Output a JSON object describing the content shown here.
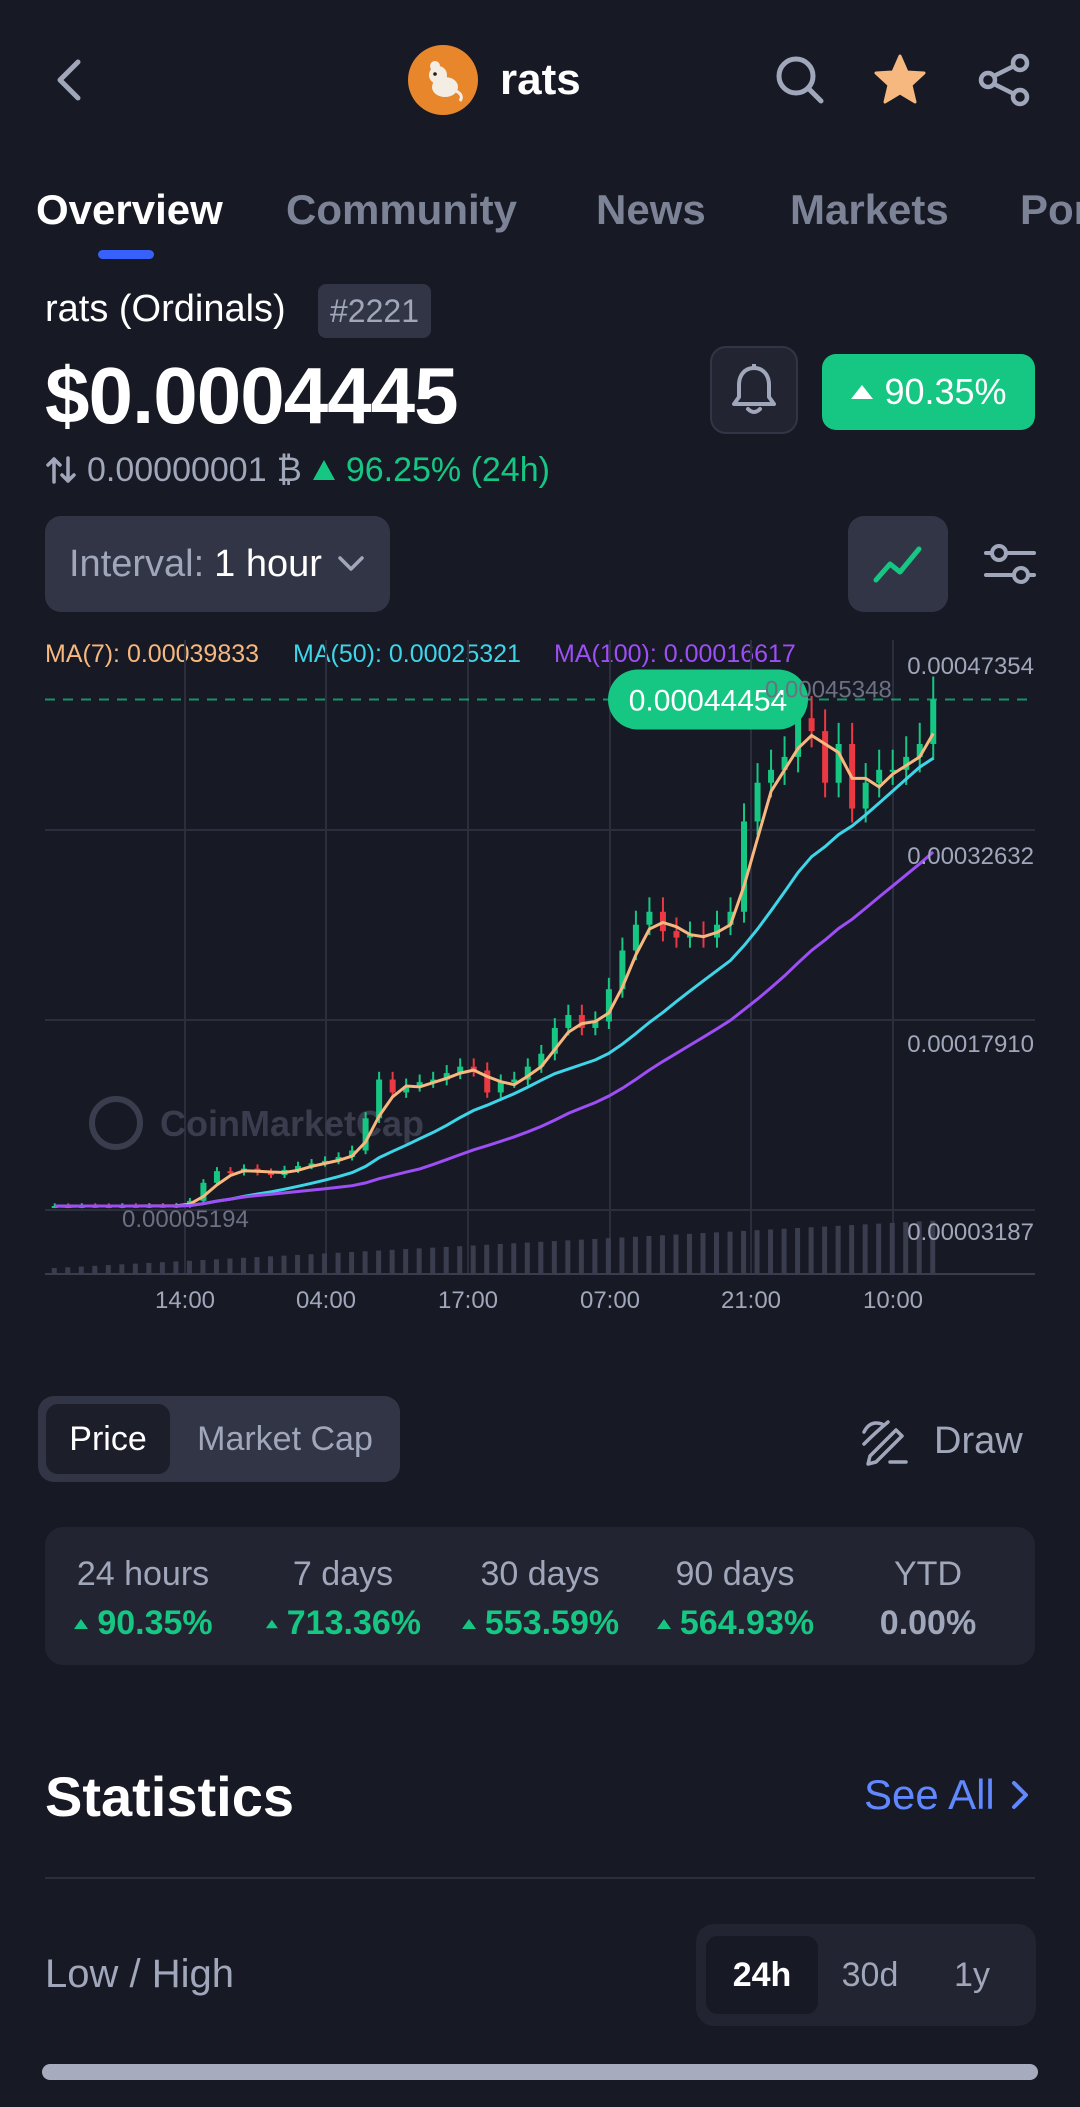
{
  "header": {
    "coin_name": "rats",
    "icons": [
      "back-icon",
      "search-icon",
      "star-icon",
      "share-icon"
    ],
    "favorite_color": "#f6b87e"
  },
  "tabs": [
    {
      "label": "Overview",
      "active": true
    },
    {
      "label": "Community",
      "active": false
    },
    {
      "label": "News",
      "active": false
    },
    {
      "label": "Markets",
      "active": false
    },
    {
      "label": "Por",
      "active": false
    }
  ],
  "coin": {
    "full_name": "rats (Ordinals)",
    "rank": "#2221",
    "price": "$0.0004445",
    "change_badge": "90.35%",
    "btc_price": "0.00000001",
    "btc_change": "96.25% (24h)"
  },
  "controls": {
    "interval_label": "Interval:",
    "interval_value": "1 hour"
  },
  "chart_data": {
    "type": "candlestick",
    "ma_legend": [
      {
        "label": "MA(7): 0.00039833",
        "color": "#f6b87e"
      },
      {
        "label": "MA(50): 0.00025321",
        "color": "#3ed5e8"
      },
      {
        "label": "MA(100): 0.00016617",
        "color": "#9d4ef5"
      }
    ],
    "y_ticks": [
      "0.00047354",
      "0.00032632",
      "0.00017910",
      "0.00003187"
    ],
    "x_ticks": [
      "14:00",
      "04:00",
      "17:00",
      "07:00",
      "21:00",
      "10:00"
    ],
    "current_price_label": "0.00044454",
    "high_label": "0.00045348",
    "low_label": "0.00005194",
    "watermark": "CoinMarketCap",
    "colors": {
      "up": "#16c784",
      "down": "#ea3943",
      "ma7": "#f6b87e",
      "ma50": "#3ed5e8",
      "ma100": "#9d4ef5"
    },
    "series": [
      {
        "name": "close",
        "values": [
          5.2e-05,
          5.19e-05,
          5.21e-05,
          5.2e-05,
          5.19e-05,
          5.21e-05,
          5.2e-05,
          5.22e-05,
          5.21e-05,
          5.23e-05,
          5.6e-05,
          7e-05,
          7.9e-05,
          7.8e-05,
          8.1e-05,
          7.8e-05,
          7.6e-05,
          8e-05,
          8.3e-05,
          8.5e-05,
          8.7e-05,
          9e-05,
          9.5e-05,
          0.00012,
          0.00015,
          0.00014,
          0.000145,
          0.000148,
          0.00015,
          0.000155,
          0.00016,
          0.000157,
          0.00014,
          0.000148,
          0.00015,
          0.00016,
          0.00017,
          0.00019,
          0.0002,
          0.00019,
          0.000195,
          0.00022,
          0.00025,
          0.00027,
          0.00028,
          0.000265,
          0.00026,
          0.000262,
          0.00026,
          0.00027,
          0.00028,
          0.00035,
          0.00038,
          0.00039,
          0.0004,
          0.00043,
          0.00042,
          0.00038,
          0.00041,
          0.00036,
          0.00038,
          0.00039,
          0.00039,
          0.0004,
          0.00041,
          0.0004445
        ]
      }
    ]
  },
  "chart_toggle": {
    "price_label": "Price",
    "market_cap_label": "Market Cap",
    "draw_label": "Draw"
  },
  "performance": [
    {
      "label": "24 hours",
      "value": "90.35%",
      "up": true
    },
    {
      "label": "7 days",
      "value": "713.36%",
      "up": true
    },
    {
      "label": "30 days",
      "value": "553.59%",
      "up": true
    },
    {
      "label": "90 days",
      "value": "564.93%",
      "up": true
    },
    {
      "label": "YTD",
      "value": "0.00%",
      "up": false
    }
  ],
  "statistics": {
    "title": "Statistics",
    "see_all": "See All",
    "low_high_label": "Low / High",
    "ranges": [
      {
        "label": "24h",
        "active": true
      },
      {
        "label": "30d",
        "active": false
      },
      {
        "label": "1y",
        "active": false
      }
    ]
  }
}
